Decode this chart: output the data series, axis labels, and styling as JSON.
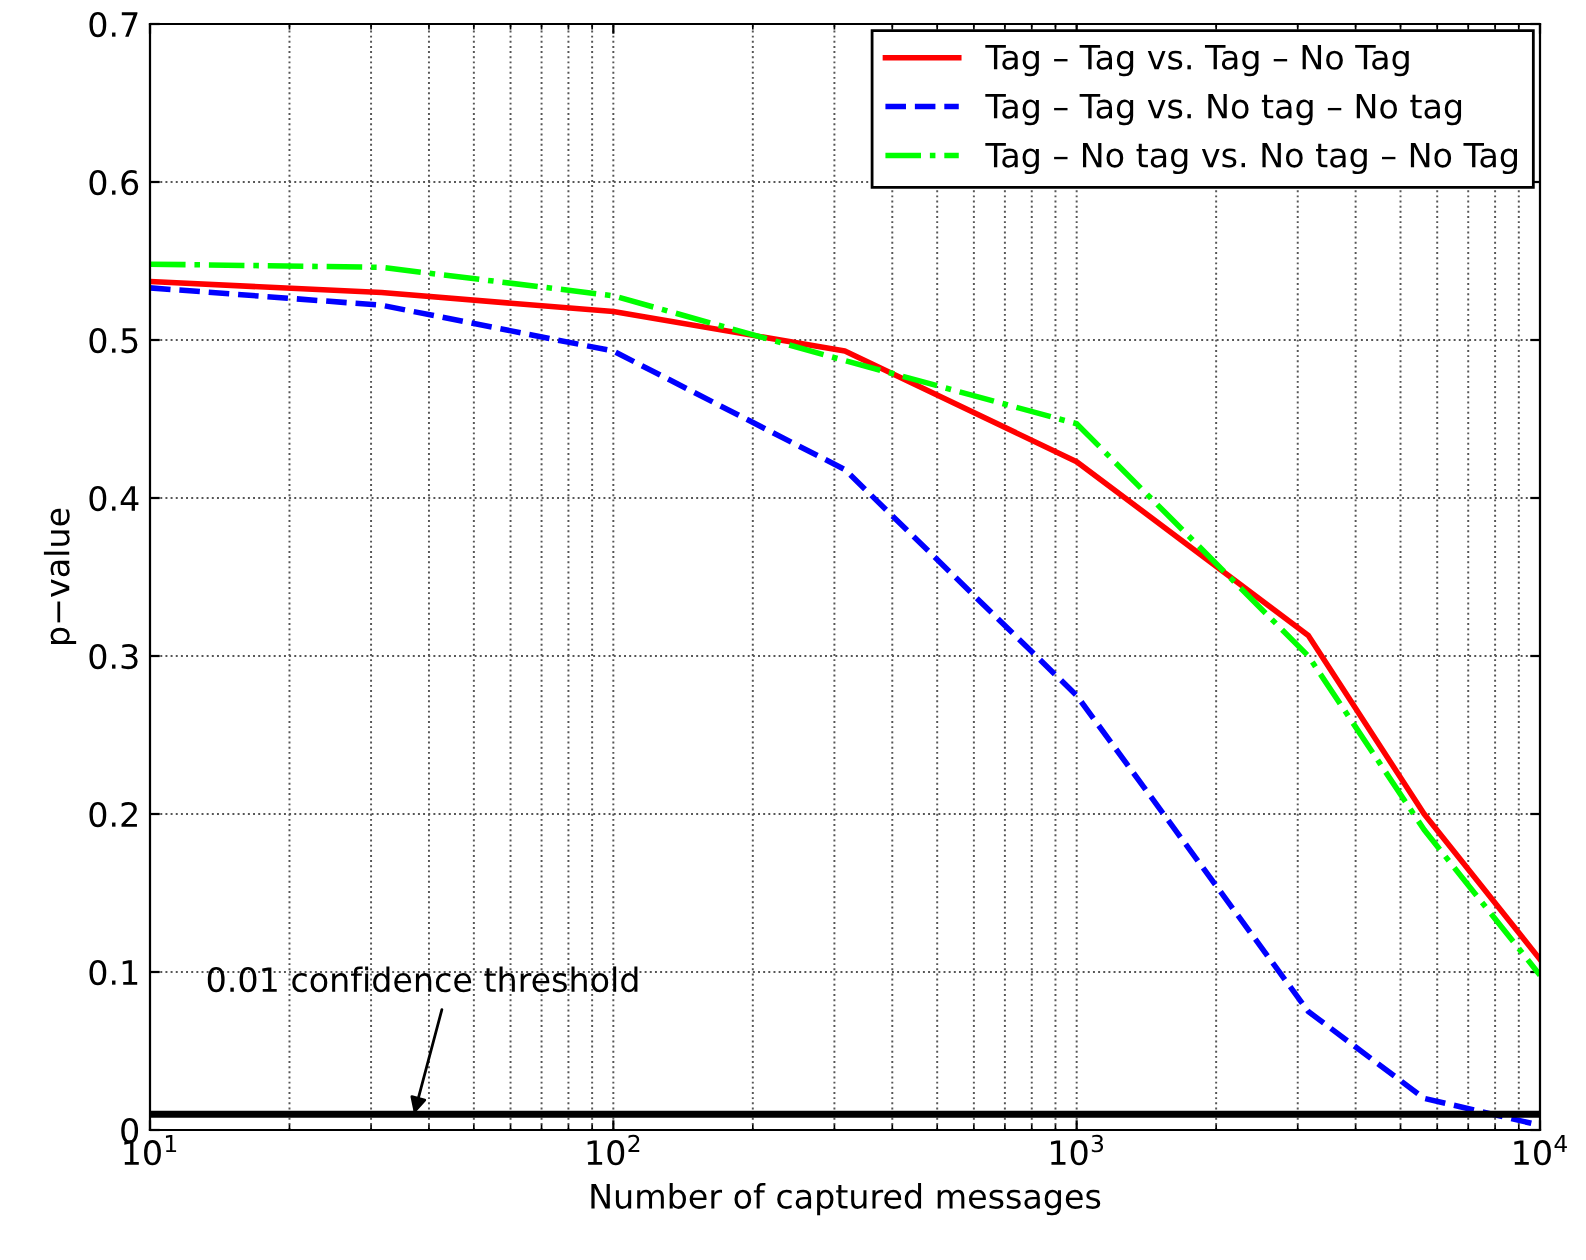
{
  "chart_data": {
    "type": "line",
    "xlabel": "Number of captured messages",
    "ylabel": "p−value",
    "log": "x",
    "xlim": [
      10,
      10000
    ],
    "xticks": [
      {
        "value": 10,
        "label": "10$^{1}$"
      },
      {
        "value": 100,
        "label": "10$^{2}$"
      },
      {
        "value": 1000,
        "label": "10$^{3}$"
      },
      {
        "value": 10000,
        "label": "10$^{4}$"
      }
    ],
    "ylim": [
      0,
      0.7
    ],
    "yticks": [
      0,
      0.1,
      0.2,
      0.3,
      0.4,
      0.5,
      0.6,
      0.7
    ],
    "grid": true,
    "legend": "top right",
    "x": [
      10,
      31.6,
      100,
      316,
      1000,
      3162,
      5623,
      10000
    ],
    "series": [
      {
        "name": "Tag – Tag vs. Tag – No Tag",
        "color": "#ff0000",
        "line_style": "solid",
        "values": [
          0.537,
          0.53,
          0.518,
          0.493,
          0.423,
          0.313,
          0.2,
          0.108
        ]
      },
      {
        "name": "Tag – Tag vs. No tag – No tag",
        "color": "#0000ff",
        "line_style": "dashed",
        "values": [
          0.533,
          0.522,
          0.493,
          0.418,
          0.275,
          0.075,
          0.02,
          0.003
        ]
      },
      {
        "name": "Tag – No tag vs. No tag – No Tag",
        "color": "#00ff00",
        "line_style": "dashdot",
        "values": [
          0.548,
          0.546,
          0.528,
          0.487,
          0.447,
          0.3,
          0.19,
          0.098
        ]
      }
    ],
    "ref_lines": [
      {
        "axis": "y",
        "value": 0.01,
        "label": "0.01 confidence threshold",
        "color": "#000000"
      }
    ]
  }
}
